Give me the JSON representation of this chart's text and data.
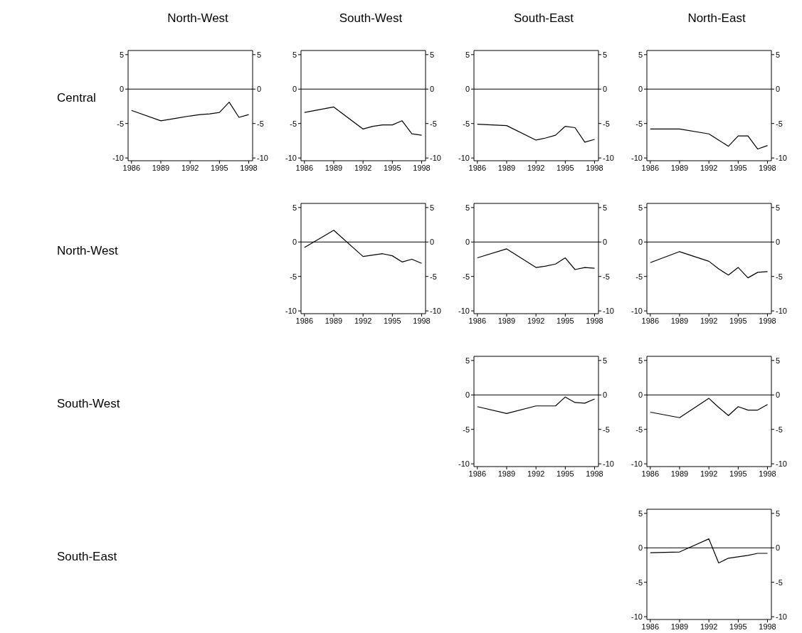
{
  "chart_data": [
    {
      "type": "line",
      "title": "North-West",
      "ylabel": "Central",
      "x": [
        1986,
        1989,
        1992,
        1993,
        1994,
        1995,
        1996,
        1997,
        1998
      ],
      "xlim": [
        1985.65,
        1998.4
      ],
      "xticks": [
        1986,
        1989,
        1992,
        1995,
        1998
      ],
      "ylim": [
        -10.4,
        5.6
      ],
      "yticks": [
        -10,
        -5,
        0,
        5
      ],
      "y2lim": [
        -10.4,
        5.6
      ],
      "y2ticks": [
        -10,
        -5,
        0,
        5
      ],
      "ref_lines": [
        {
          "axis": "y",
          "value": 0,
          "color": "#000000"
        }
      ],
      "grid": false,
      "legend": false,
      "series": [
        {
          "color": "#000000",
          "values": [
            -3.1,
            -4.6,
            -3.9,
            -3.7,
            -3.6,
            -3.4,
            -1.9,
            -4.1,
            -3.7
          ]
        }
      ]
    },
    {
      "type": "line",
      "title": "South-West",
      "x": [
        1986,
        1989,
        1992,
        1993,
        1994,
        1995,
        1996,
        1997,
        1998
      ],
      "xlim": [
        1985.65,
        1998.4
      ],
      "xticks": [
        1986,
        1989,
        1992,
        1995,
        1998
      ],
      "ylim": [
        -10.4,
        5.6
      ],
      "yticks": [
        -10,
        -5,
        0,
        5
      ],
      "y2lim": [
        -10.4,
        5.6
      ],
      "y2ticks": [
        -10,
        -5,
        0,
        5
      ],
      "ref_lines": [
        {
          "axis": "y",
          "value": 0,
          "color": "#000000"
        }
      ],
      "grid": false,
      "legend": false,
      "series": [
        {
          "color": "#000000",
          "values": [
            -3.4,
            -2.6,
            -5.8,
            -5.4,
            -5.2,
            -5.2,
            -4.6,
            -6.5,
            -6.7
          ]
        }
      ]
    },
    {
      "type": "line",
      "title": "South-East",
      "x": [
        1986,
        1989,
        1992,
        1993,
        1994,
        1995,
        1996,
        1997,
        1998
      ],
      "xlim": [
        1985.65,
        1998.4
      ],
      "xticks": [
        1986,
        1989,
        1992,
        1995,
        1998
      ],
      "ylim": [
        -10.4,
        5.6
      ],
      "yticks": [
        -10,
        -5,
        0,
        5
      ],
      "y2lim": [
        -10.4,
        5.6
      ],
      "y2ticks": [
        -10,
        -5,
        0,
        5
      ],
      "ref_lines": [
        {
          "axis": "y",
          "value": 0,
          "color": "#000000"
        }
      ],
      "grid": false,
      "legend": false,
      "series": [
        {
          "color": "#000000",
          "values": [
            -5.1,
            -5.3,
            -7.4,
            -7.1,
            -6.7,
            -5.4,
            -5.6,
            -7.7,
            -7.3
          ]
        }
      ]
    },
    {
      "type": "line",
      "title": "North-East",
      "x": [
        1986,
        1989,
        1992,
        1993,
        1994,
        1995,
        1996,
        1997,
        1998
      ],
      "xlim": [
        1985.65,
        1998.4
      ],
      "xticks": [
        1986,
        1989,
        1992,
        1995,
        1998
      ],
      "ylim": [
        -10.4,
        5.6
      ],
      "yticks": [
        -10,
        -5,
        0,
        5
      ],
      "y2lim": [
        -10.4,
        5.6
      ],
      "y2ticks": [
        -10,
        -5,
        0,
        5
      ],
      "ref_lines": [
        {
          "axis": "y",
          "value": 0,
          "color": "#000000"
        }
      ],
      "grid": false,
      "legend": false,
      "series": [
        {
          "color": "#000000",
          "values": [
            -5.8,
            -5.8,
            -6.5,
            -7.4,
            -8.3,
            -6.8,
            -6.8,
            -8.7,
            -8.2
          ]
        }
      ]
    },
    {
      "type": "line",
      "ylabel": "North-West",
      "x": [
        1986,
        1989,
        1992,
        1993,
        1994,
        1995,
        1996,
        1997,
        1998
      ],
      "xlim": [
        1985.65,
        1998.4
      ],
      "xticks": [
        1986,
        1989,
        1992,
        1995,
        1998
      ],
      "ylim": [
        -10.4,
        5.6
      ],
      "yticks": [
        -10,
        -5,
        0,
        5
      ],
      "y2lim": [
        -10.4,
        5.6
      ],
      "y2ticks": [
        -10,
        -5,
        0,
        5
      ],
      "ref_lines": [
        {
          "axis": "y",
          "value": 0,
          "color": "#000000"
        }
      ],
      "grid": false,
      "legend": false,
      "series": [
        {
          "color": "#000000",
          "values": [
            -0.8,
            1.7,
            -2.1,
            -1.9,
            -1.7,
            -2.0,
            -2.9,
            -2.5,
            -3.1
          ]
        }
      ]
    },
    {
      "type": "line",
      "x": [
        1986,
        1989,
        1992,
        1993,
        1994,
        1995,
        1996,
        1997,
        1998
      ],
      "xlim": [
        1985.65,
        1998.4
      ],
      "xticks": [
        1986,
        1989,
        1992,
        1995,
        1998
      ],
      "ylim": [
        -10.4,
        5.6
      ],
      "yticks": [
        -10,
        -5,
        0,
        5
      ],
      "y2lim": [
        -10.4,
        5.6
      ],
      "y2ticks": [
        -10,
        -5,
        0,
        5
      ],
      "ref_lines": [
        {
          "axis": "y",
          "value": 0,
          "color": "#000000"
        }
      ],
      "grid": false,
      "legend": false,
      "series": [
        {
          "color": "#000000",
          "values": [
            -2.3,
            -1.0,
            -3.7,
            -3.5,
            -3.2,
            -2.3,
            -4.0,
            -3.7,
            -3.8
          ]
        }
      ]
    },
    {
      "type": "line",
      "x": [
        1986,
        1989,
        1992,
        1993,
        1994,
        1995,
        1996,
        1997,
        1998
      ],
      "xlim": [
        1985.65,
        1998.4
      ],
      "xticks": [
        1986,
        1989,
        1992,
        1995,
        1998
      ],
      "ylim": [
        -10.4,
        5.6
      ],
      "yticks": [
        -10,
        -5,
        0,
        5
      ],
      "y2lim": [
        -10.4,
        5.6
      ],
      "y2ticks": [
        -10,
        -5,
        0,
        5
      ],
      "ref_lines": [
        {
          "axis": "y",
          "value": 0,
          "color": "#000000"
        }
      ],
      "grid": false,
      "legend": false,
      "series": [
        {
          "color": "#000000",
          "values": [
            -3.0,
            -1.4,
            -2.8,
            -3.9,
            -4.8,
            -3.7,
            -5.2,
            -4.4,
            -4.3
          ]
        }
      ]
    },
    {
      "type": "line",
      "ylabel": "South-West",
      "x": [
        1986,
        1989,
        1992,
        1993,
        1994,
        1995,
        1996,
        1997,
        1998
      ],
      "xlim": [
        1985.65,
        1998.4
      ],
      "xticks": [
        1986,
        1989,
        1992,
        1995,
        1998
      ],
      "ylim": [
        -10.4,
        5.6
      ],
      "yticks": [
        -10,
        -5,
        0,
        5
      ],
      "y2lim": [
        -10.4,
        5.6
      ],
      "y2ticks": [
        -10,
        -5,
        0,
        5
      ],
      "ref_lines": [
        {
          "axis": "y",
          "value": 0,
          "color": "#000000"
        }
      ],
      "grid": false,
      "legend": false,
      "series": [
        {
          "color": "#000000",
          "values": [
            -1.7,
            -2.7,
            -1.6,
            -1.6,
            -1.6,
            -0.3,
            -1.1,
            -1.2,
            -0.6
          ]
        }
      ]
    },
    {
      "type": "line",
      "x": [
        1986,
        1989,
        1992,
        1993,
        1994,
        1995,
        1996,
        1997,
        1998
      ],
      "xlim": [
        1985.65,
        1998.4
      ],
      "xticks": [
        1986,
        1989,
        1992,
        1995,
        1998
      ],
      "ylim": [
        -10.4,
        5.6
      ],
      "yticks": [
        -10,
        -5,
        0,
        5
      ],
      "y2lim": [
        -10.4,
        5.6
      ],
      "y2ticks": [
        -10,
        -5,
        0,
        5
      ],
      "ref_lines": [
        {
          "axis": "y",
          "value": 0,
          "color": "#000000"
        }
      ],
      "grid": false,
      "legend": false,
      "series": [
        {
          "color": "#000000",
          "values": [
            -2.5,
            -3.3,
            -0.5,
            -1.8,
            -3.0,
            -1.7,
            -2.2,
            -2.2,
            -1.4
          ]
        }
      ]
    },
    {
      "type": "line",
      "ylabel": "South-East",
      "x": [
        1986,
        1989,
        1992,
        1993,
        1994,
        1995,
        1996,
        1997,
        1998
      ],
      "xlim": [
        1985.65,
        1998.4
      ],
      "xticks": [
        1986,
        1989,
        1992,
        1995,
        1998
      ],
      "ylim": [
        -10.4,
        5.6
      ],
      "yticks": [
        -10,
        -5,
        0,
        5
      ],
      "y2lim": [
        -10.4,
        5.6
      ],
      "y2ticks": [
        -10,
        -5,
        0,
        5
      ],
      "ref_lines": [
        {
          "axis": "y",
          "value": 0,
          "color": "#000000"
        }
      ],
      "grid": false,
      "legend": false,
      "series": [
        {
          "color": "#000000",
          "values": [
            -0.7,
            -0.6,
            1.3,
            -2.2,
            -1.5,
            -1.3,
            -1.1,
            -0.8,
            -0.8
          ]
        }
      ]
    }
  ]
}
